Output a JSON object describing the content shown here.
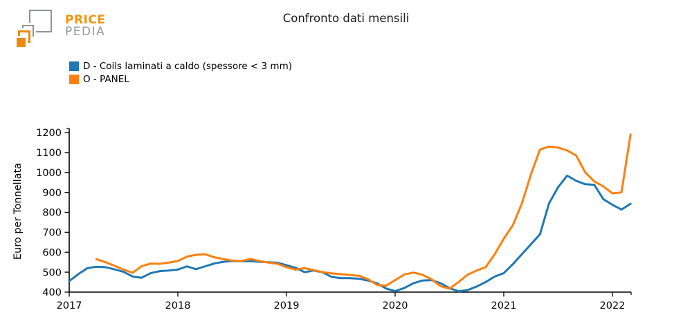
{
  "header": {
    "logo": {
      "price": "PRICE",
      "pedia": "PEDIA"
    }
  },
  "colors": {
    "logo_orange": "#e98b0e",
    "logo_gray": "#8f9294",
    "axis": "#000000"
  },
  "chart_data": {
    "type": "line",
    "title": "Confronto dati mensili",
    "xlabel": "",
    "ylabel": "Euro per Tonnellata",
    "ylim": [
      400,
      1200
    ],
    "y_ticks": [
      400,
      500,
      600,
      700,
      800,
      900,
      1000,
      1100,
      1200
    ],
    "x_ticks": [
      2017,
      2018,
      2019,
      2020,
      2021,
      2022
    ],
    "grid": false,
    "legend_position": "top-left",
    "frequency": "monthly",
    "months": [
      "2017-01",
      "2017-02",
      "2017-03",
      "2017-04",
      "2017-05",
      "2017-06",
      "2017-07",
      "2017-08",
      "2017-09",
      "2017-10",
      "2017-11",
      "2017-12",
      "2018-01",
      "2018-02",
      "2018-03",
      "2018-04",
      "2018-05",
      "2018-06",
      "2018-07",
      "2018-08",
      "2018-09",
      "2018-10",
      "2018-11",
      "2018-12",
      "2019-01",
      "2019-02",
      "2019-03",
      "2019-04",
      "2019-05",
      "2019-06",
      "2019-07",
      "2019-08",
      "2019-09",
      "2019-10",
      "2019-11",
      "2019-12",
      "2020-01",
      "2020-02",
      "2020-03",
      "2020-04",
      "2020-05",
      "2020-06",
      "2020-07",
      "2020-08",
      "2020-09",
      "2020-10",
      "2020-11",
      "2020-12",
      "2021-01",
      "2021-02",
      "2021-03",
      "2021-04",
      "2021-05",
      "2021-06",
      "2021-07",
      "2021-08",
      "2021-09",
      "2021-10",
      "2021-11",
      "2021-12",
      "2022-01",
      "2022-02",
      "2022-03"
    ],
    "series": [
      {
        "id": "d-coils",
        "name": "D - Coils laminati a caldo (spessore < 3 mm)",
        "color": "#1f77b4",
        "values": [
          455,
          490,
          520,
          527,
          525,
          514,
          502,
          478,
          472,
          495,
          505,
          508,
          513,
          529,
          515,
          529,
          543,
          552,
          556,
          555,
          555,
          552,
          550,
          547,
          535,
          522,
          500,
          508,
          499,
          476,
          470,
          470,
          467,
          458,
          444,
          418,
          405,
          420,
          444,
          458,
          460,
          445,
          420,
          404,
          410,
          428,
          450,
          478,
          495,
          540,
          590,
          640,
          690,
          845,
          926,
          984,
          958,
          941,
          938,
          866,
          838,
          814,
          843
        ]
      },
      {
        "id": "o-panel",
        "name": "O - PANEL",
        "color": "#ff7f0e",
        "values": [
          null,
          null,
          null,
          565,
          550,
          532,
          513,
          497,
          530,
          543,
          542,
          548,
          556,
          578,
          587,
          590,
          575,
          566,
          558,
          556,
          566,
          556,
          548,
          542,
          525,
          513,
          520,
          510,
          500,
          494,
          490,
          486,
          482,
          465,
          436,
          432,
          460,
          488,
          498,
          487,
          465,
          430,
          417,
          450,
          487,
          508,
          525,
          590,
          668,
          735,
          845,
          990,
          1115,
          1130,
          1125,
          1110,
          1085,
          1000,
          955,
          930,
          895,
          900,
          1190
        ]
      }
    ]
  }
}
